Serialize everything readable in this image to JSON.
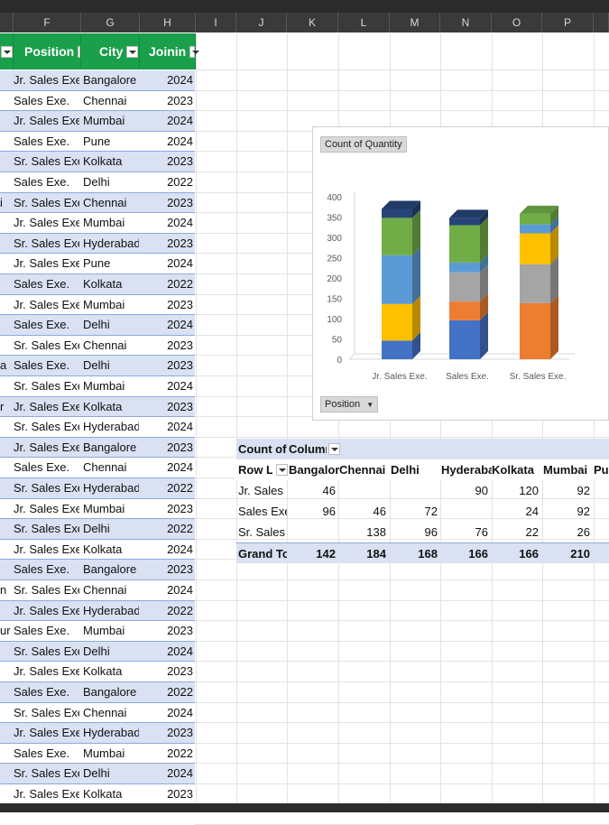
{
  "columns": [
    "F",
    "G",
    "H",
    "I",
    "J",
    "K",
    "L",
    "M",
    "N",
    "O",
    "P"
  ],
  "table": {
    "headers": {
      "position": "Position",
      "city": "City",
      "joining": "Joinin"
    },
    "rows": [
      {
        "e": "",
        "position": "Jr. Sales Exe.",
        "city": "Bangalore",
        "year": "2024"
      },
      {
        "e": "",
        "position": "Sales Exe.",
        "city": "Chennai",
        "year": "2023"
      },
      {
        "e": "",
        "position": "Jr. Sales Exe.",
        "city": "Mumbai",
        "year": "2024"
      },
      {
        "e": "",
        "position": "Sales Exe.",
        "city": "Pune",
        "year": "2024"
      },
      {
        "e": "",
        "position": "Sr. Sales Exe.",
        "city": "Kolkata",
        "year": "2023"
      },
      {
        "e": "",
        "position": "Sales Exe.",
        "city": "Delhi",
        "year": "2022"
      },
      {
        "e": "i",
        "position": "Sr. Sales Exe.",
        "city": "Chennai",
        "year": "2023"
      },
      {
        "e": "",
        "position": "Jr. Sales Exe.",
        "city": "Mumbai",
        "year": "2024"
      },
      {
        "e": "",
        "position": "Sr. Sales Exe.",
        "city": "Hyderabad",
        "year": "2023"
      },
      {
        "e": "",
        "position": "Jr. Sales Exe.",
        "city": "Pune",
        "year": "2024"
      },
      {
        "e": "",
        "position": "Sales Exe.",
        "city": "Kolkata",
        "year": "2022"
      },
      {
        "e": "",
        "position": "Jr. Sales Exe.",
        "city": "Mumbai",
        "year": "2023"
      },
      {
        "e": "",
        "position": "Sales Exe.",
        "city": "Delhi",
        "year": "2024"
      },
      {
        "e": "",
        "position": "Sr. Sales Exe.",
        "city": "Chennai",
        "year": "2023"
      },
      {
        "e": "a",
        "position": "Sales Exe.",
        "city": "Delhi",
        "year": "2023"
      },
      {
        "e": "",
        "position": "Sr. Sales Exe.",
        "city": "Mumbai",
        "year": "2024"
      },
      {
        "e": "r",
        "position": "Jr. Sales Exe.",
        "city": "Kolkata",
        "year": "2023"
      },
      {
        "e": "",
        "position": "Sr. Sales Exe.",
        "city": "Hyderabad",
        "year": "2024"
      },
      {
        "e": "",
        "position": "Jr. Sales Exe.",
        "city": "Bangalore",
        "year": "2023"
      },
      {
        "e": "",
        "position": "Sales Exe.",
        "city": "Chennai",
        "year": "2024"
      },
      {
        "e": "",
        "position": "Sr. Sales Exe.",
        "city": "Hyderabad",
        "year": "2022"
      },
      {
        "e": "",
        "position": "Jr. Sales Exe.",
        "city": "Mumbai",
        "year": "2023"
      },
      {
        "e": "",
        "position": "Sr. Sales Exe.",
        "city": "Delhi",
        "year": "2022"
      },
      {
        "e": "",
        "position": "Jr. Sales Exe.",
        "city": "Kolkata",
        "year": "2024"
      },
      {
        "e": "",
        "position": "Sales Exe.",
        "city": "Bangalore",
        "year": "2023"
      },
      {
        "e": "n",
        "position": "Sr. Sales Exe.",
        "city": "Chennai",
        "year": "2024"
      },
      {
        "e": "",
        "position": "Jr. Sales Exe.",
        "city": "Hyderabad",
        "year": "2022"
      },
      {
        "e": "ur",
        "position": "Sales Exe.",
        "city": "Mumbai",
        "year": "2023"
      },
      {
        "e": "",
        "position": "Sr. Sales Exe.",
        "city": "Delhi",
        "year": "2024"
      },
      {
        "e": "",
        "position": "Jr. Sales Exe.",
        "city": "Kolkata",
        "year": "2023"
      },
      {
        "e": "",
        "position": "Sales Exe.",
        "city": "Bangalore",
        "year": "2022"
      },
      {
        "e": "",
        "position": "Sr. Sales Exe.",
        "city": "Chennai",
        "year": "2024"
      },
      {
        "e": "",
        "position": "Jr. Sales Exe.",
        "city": "Hyderabad",
        "year": "2023"
      },
      {
        "e": "",
        "position": "Sales Exe.",
        "city": "Mumbai",
        "year": "2022"
      },
      {
        "e": "",
        "position": "Sr. Sales Exe.",
        "city": "Delhi",
        "year": "2024"
      },
      {
        "e": "",
        "position": "Jr. Sales Exe.",
        "city": "Kolkata",
        "year": "2023"
      }
    ]
  },
  "chart": {
    "field_button": "Count of Quantity",
    "filter_button": "Position"
  },
  "chart_data": {
    "type": "bar",
    "stacked": true,
    "categories": [
      "Jr. Sales Exe.",
      "Sales Exe.",
      "Sr. Sales Exe."
    ],
    "ylim": [
      0,
      400
    ],
    "yticks": [
      0,
      50,
      100,
      150,
      200,
      250,
      300,
      350,
      400
    ],
    "series": [
      {
        "color": "#4472c4",
        "values": [
          46,
          96,
          0
        ]
      },
      {
        "color": "#ed7d31",
        "values": [
          0,
          46,
          138
        ]
      },
      {
        "color": "#a5a5a5",
        "values": [
          0,
          72,
          96
        ]
      },
      {
        "color": "#ffc000",
        "values": [
          90,
          0,
          76
        ]
      },
      {
        "color": "#5b9bd5",
        "values": [
          120,
          24,
          22
        ]
      },
      {
        "color": "#70ad47",
        "values": [
          92,
          92,
          26
        ]
      },
      {
        "color": "#264478",
        "values": [
          22,
          18,
          0
        ]
      }
    ],
    "grid": false
  },
  "pivot": {
    "title": "Count of (",
    "col_label": "Column",
    "row_label": "Row La",
    "columns": [
      "Bangalore",
      "Chennai",
      "Delhi",
      "Hyderaba",
      "Kolkata",
      "Mumbai",
      "Pu"
    ],
    "rows": [
      {
        "label": "Jr. Sales E:",
        "values": [
          "46",
          "",
          "",
          "90",
          "120",
          "92",
          ""
        ]
      },
      {
        "label": "Sales Exe.",
        "values": [
          "96",
          "46",
          "72",
          "",
          "24",
          "92",
          ""
        ]
      },
      {
        "label": "Sr. Sales Exe.",
        "values": [
          "",
          "138",
          "96",
          "76",
          "22",
          "26",
          ""
        ]
      }
    ],
    "total": {
      "label": "Grand Tot",
      "values": [
        "142",
        "184",
        "168",
        "166",
        "166",
        "210",
        ""
      ]
    }
  },
  "colors": {
    "table_header": "#1a9f4a",
    "band": "#d9e1f2",
    "row_border": "#8eaadb"
  }
}
